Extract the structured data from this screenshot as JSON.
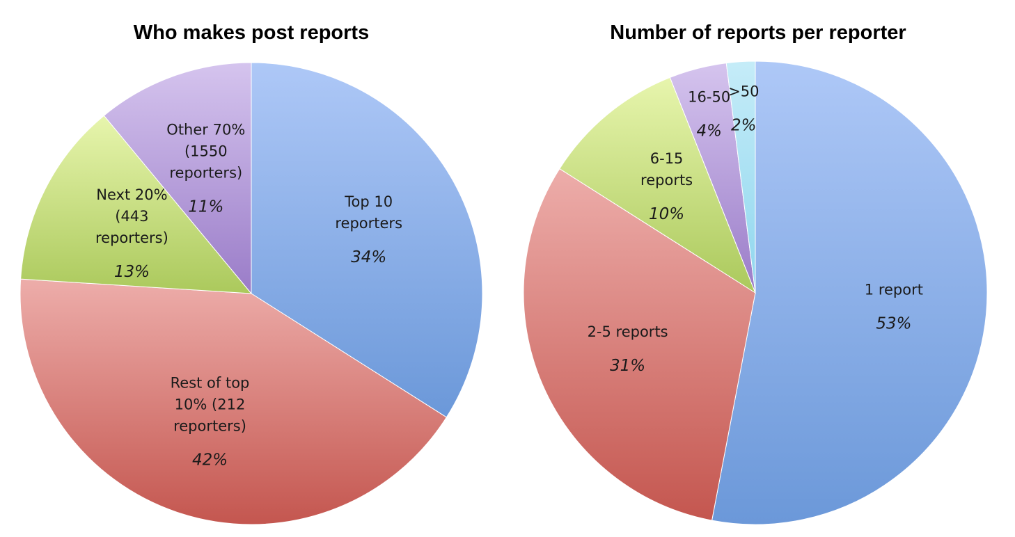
{
  "colors": {
    "blue": [
      "#aec8f7",
      "#6b98d9"
    ],
    "red": [
      "#edadaa",
      "#c4564f"
    ],
    "green": [
      "#e7f5ad",
      "#abc95c"
    ],
    "purple": [
      "#d5c4ee",
      "#9a7cc8"
    ],
    "cyan": [
      "#c5ecf8",
      "#8fd6ee"
    ]
  },
  "chart_data": [
    {
      "type": "pie",
      "title": "Who makes post reports",
      "slices": [
        {
          "label": [
            "Top 10",
            "reporters"
          ],
          "value": 34,
          "pct_label": "34%",
          "color": "blue"
        },
        {
          "label": [
            "Rest of top",
            "10% (212",
            "reporters)"
          ],
          "value": 42,
          "pct_label": "42%",
          "color": "red"
        },
        {
          "label": [
            "Next 20%",
            "(443",
            "reporters)"
          ],
          "value": 13,
          "pct_label": "13%",
          "color": "green"
        },
        {
          "label": [
            "Other 70%",
            "(1550",
            "reporters)"
          ],
          "value": 11,
          "pct_label": "11%",
          "color": "purple"
        }
      ]
    },
    {
      "type": "pie",
      "title": "Number of reports per reporter",
      "slices": [
        {
          "label": [
            "1 report"
          ],
          "value": 53,
          "pct_label": "53%",
          "color": "blue"
        },
        {
          "label": [
            "2-5 reports"
          ],
          "value": 31,
          "pct_label": "31%",
          "color": "red"
        },
        {
          "label": [
            "6-15",
            "reports"
          ],
          "value": 10,
          "pct_label": "10%",
          "color": "green"
        },
        {
          "label": [
            "16-50"
          ],
          "value": 4,
          "pct_label": "4%",
          "color": "purple"
        },
        {
          "label": [
            ">50"
          ],
          "value": 2,
          "pct_label": "2%",
          "color": "cyan"
        }
      ]
    }
  ]
}
